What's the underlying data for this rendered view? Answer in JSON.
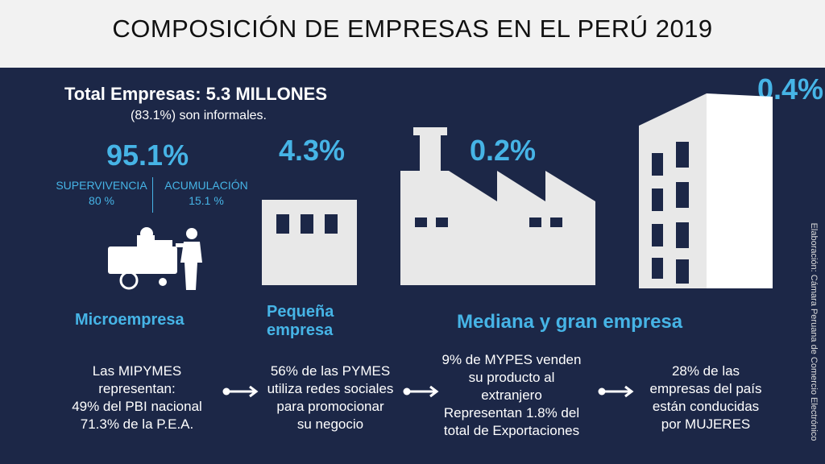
{
  "title": "COMPOSICIÓN DE EMPRESAS EN EL PERÚ 2019",
  "total": {
    "label": "Total Empresas: 5.3 MILLONES",
    "informal": "(83.1%) son informales."
  },
  "micro": {
    "pct": "95.1%",
    "supervivencia_label": "SUPERVIVENCIA",
    "supervivencia_value": "80 %",
    "acumulacion_label": "ACUMULACIÓN",
    "acumulacion_value": "15.1 %",
    "name": "Microempresa"
  },
  "pequena": {
    "pct": "4.3%",
    "name_line1": "Pequeña",
    "name_line2": "empresa"
  },
  "mediana": {
    "pct": "0.2%"
  },
  "grande": {
    "pct": "0.4%"
  },
  "mediana_grande_name": "Mediana y gran empresa",
  "facts": [
    "Las MIPYMES\nrepresentan:\n49% del PBI nacional\n71.3% de la P.E.A.",
    "56% de las PYMES\nutiliza redes sociales\npara promocionar\nsu negocio",
    "9% de MYPES venden\nsu producto al\nextranjero\nRepresentan 1.8% del\ntotal de Exportaciones",
    "28% de las\nempresas del país\nestán conducidas\npor MUJERES"
  ],
  "credit": "Elaboración: Cámara Peruana de Comercio Electrónico",
  "colors": {
    "panel": "#1c2747",
    "accent": "#46b4e6",
    "text": "#ffffff",
    "title_bg": "#f2f2f2"
  },
  "icons": [
    "worker-machine-icon",
    "small-building-icon",
    "factory-icon",
    "tall-building-icon",
    "arrow-right-icon"
  ]
}
